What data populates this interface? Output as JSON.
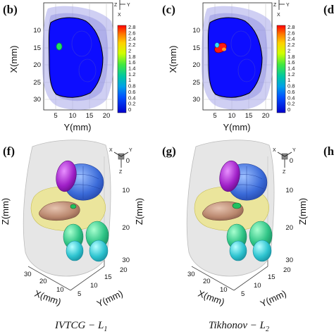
{
  "panels": {
    "b": {
      "label": "(b)"
    },
    "c": {
      "label": "(c)"
    },
    "d_partial": {
      "label": "(d"
    },
    "f": {
      "label": "(f)"
    },
    "g": {
      "label": "(g)"
    },
    "h_partial": {
      "label": "(h"
    }
  },
  "top_row": {
    "x_axis_label": "Y(mm)",
    "y_axis_label": "X(mm)",
    "x_ticks": [
      "5",
      "10",
      "15",
      "20"
    ],
    "y_ticks": [
      "10",
      "15",
      "20",
      "25",
      "30"
    ],
    "triad": {
      "z": "Z",
      "y": "Y",
      "x": "X"
    }
  },
  "colorbar": {
    "ticks": [
      "2.8",
      "2.6",
      "2.4",
      "2.2",
      "2",
      "1.8",
      "1.6",
      "1.4",
      "1.2",
      "1",
      "0.8",
      "0.6",
      "0.4",
      "0.2",
      "0"
    ],
    "colors": [
      "#ff0000",
      "#ff4a00",
      "#ff8a00",
      "#ffc400",
      "#f0ff00",
      "#b4ff00",
      "#6cf000",
      "#20e000",
      "#00d060",
      "#00c8b4",
      "#00a0e0",
      "#0070ff",
      "#0030ff",
      "#0000d8"
    ]
  },
  "bottom_row": {
    "z_axis_label": "Z(mm)",
    "x_axis_label": "X(mm)",
    "y_axis_label": "Y(mm)",
    "z_ticks": [
      "0",
      "10",
      "20",
      "30"
    ],
    "x_ticks": [
      "30",
      "20",
      "10"
    ],
    "y_ticks": [
      "5",
      "10",
      "15",
      "20"
    ],
    "triad": {
      "x": "X",
      "y": "Y",
      "z": "Z"
    }
  },
  "captions": {
    "f": {
      "main": "IVTCG − L",
      "sub": "1"
    },
    "g": {
      "main": "Tikhonov − L",
      "sub": "2"
    }
  },
  "colors": {
    "grid_blue": "#0d0dff",
    "shell": "#a8a8ea",
    "purple": "#a020c8",
    "lung_blue": "#3a6ad8",
    "yellow": "#ece58a",
    "tan": "#b9876e",
    "green": "#28b46e",
    "cyan": "#2ec4c4",
    "skin": "#e2e2e2"
  }
}
